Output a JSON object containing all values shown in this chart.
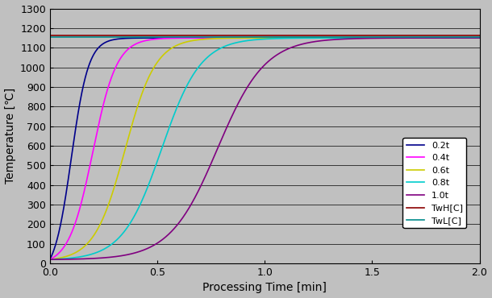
{
  "title": "",
  "xlabel": "Processing Time [min]",
  "ylabel": "Temperature [℃]",
  "xlim": [
    0,
    2
  ],
  "ylim": [
    0,
    1300
  ],
  "yticks": [
    0,
    100,
    200,
    300,
    400,
    500,
    600,
    700,
    800,
    900,
    1000,
    1100,
    1200,
    1300
  ],
  "xticks": [
    0,
    0.5,
    1.0,
    1.5,
    2.0
  ],
  "T_ambient": 1150,
  "TwH": 1163,
  "TwL": 1155,
  "T_initial": 20,
  "series": [
    {
      "label": "0.2t",
      "color": "#00008B",
      "t_half": 0.1,
      "steepness": 25
    },
    {
      "label": "0.4t",
      "color": "#FF00FF",
      "t_half": 0.2,
      "steepness": 18
    },
    {
      "label": "0.6t",
      "color": "#CCCC00",
      "t_half": 0.35,
      "steepness": 14
    },
    {
      "label": "0.8t",
      "color": "#00CCCC",
      "t_half": 0.52,
      "steepness": 11
    },
    {
      "label": "1.0t",
      "color": "#800080",
      "t_half": 0.78,
      "steepness": 9
    }
  ],
  "TwH_color": "#8B0000",
  "TwL_color": "#008B8B",
  "background_color": "#C0C0C0",
  "legend_facecolor": "#FFFFFF",
  "grid_color": "#000000",
  "linewidth": 1.2
}
